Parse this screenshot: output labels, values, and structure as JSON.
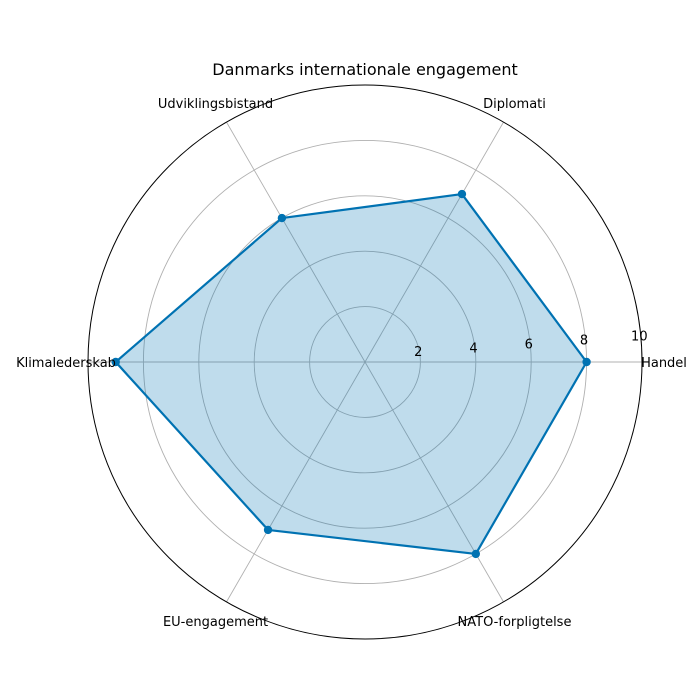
{
  "chart_data": {
    "type": "radar",
    "title": "Danmarks internationale engagement",
    "categories": [
      "Handel",
      "Diplomati",
      "Udviklingsbistand",
      "Klimalederskab",
      "EU-engagement",
      "NATO-forpligtelse"
    ],
    "series": [
      {
        "values": [
          8,
          7,
          6,
          9,
          7,
          8
        ]
      }
    ],
    "rlim": [
      0,
      10
    ],
    "rticks": [
      "2",
      "4",
      "6",
      "8",
      "10"
    ],
    "grid": true,
    "colors": {
      "line": "#0072b2",
      "fill": "#0072b2",
      "fill_opacity": 0.25
    }
  }
}
